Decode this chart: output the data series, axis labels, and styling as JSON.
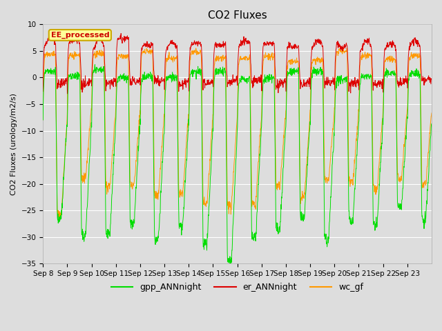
{
  "title": "CO2 Fluxes",
  "ylabel": "CO2 Fluxes (urology/m2/s)",
  "xlabel": "",
  "ylim": [
    -35,
    10
  ],
  "yticks": [
    -35,
    -30,
    -25,
    -20,
    -15,
    -10,
    -5,
    0,
    5,
    10
  ],
  "num_days": 16,
  "xtick_labels": [
    "Sep 8",
    "Sep 9",
    "Sep 10",
    "Sep 11",
    "Sep 12",
    "Sep 13",
    "Sep 14",
    "Sep 15",
    "Sep 16",
    "Sep 17",
    "Sep 18",
    "Sep 19",
    "Sep 20",
    "Sep 21",
    "Sep 22",
    "Sep 23"
  ],
  "gpp_color": "#00dd00",
  "er_color": "#dd0000",
  "wc_color": "#ff9900",
  "legend_labels": [
    "gpp_ANNnight",
    "er_ANNnight",
    "wc_gf"
  ],
  "annotation_text": "EE_processed",
  "annotation_bg": "#ffff99",
  "annotation_border": "#ccaa00",
  "background_color": "#dddddd",
  "plot_bg": "#dddddd",
  "grid_color": "#ffffff",
  "title_fontsize": 11,
  "axis_fontsize": 8,
  "tick_fontsize": 7.5
}
